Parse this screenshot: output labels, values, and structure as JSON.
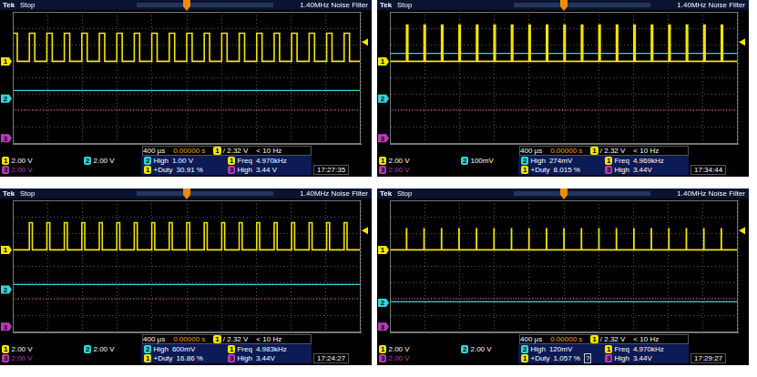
{
  "chart_data": [
    {
      "type": "line",
      "brand": "Tek",
      "title": "Stop",
      "subtitle": "1.40MHz Noise Filter",
      "xlim": [
        -2000,
        2000
      ],
      "xticks": [
        -2000,
        -1600,
        -1200,
        -800,
        -400,
        0,
        400,
        800,
        1200,
        1600,
        2000
      ],
      "ylim": [
        -4,
        4
      ],
      "yticks": [
        -4,
        -3,
        -2,
        -1,
        0,
        1,
        2,
        3,
        4
      ],
      "grid": true,
      "tick_labels": false,
      "trigger": {
        "x": 0,
        "level": 2.16
      },
      "series": [
        {
          "name": "1",
          "color": "#f2e600",
          "line_style": "step",
          "ground": 1,
          "x": [
            -2000,
            -1948,
            -1809,
            -1747,
            -1608,
            -1546,
            -1407,
            -1345,
            -1206,
            -1144,
            -1005,
            -943,
            -804,
            -742,
            -603,
            -541,
            -402,
            -340,
            -201,
            -139,
            0,
            62,
            201,
            263,
            402,
            464,
            603,
            665,
            804,
            866,
            1005,
            1067,
            1206,
            1268,
            1407,
            1469,
            1608,
            1670,
            1809,
            1871,
            2000
          ],
          "values": [
            2.7,
            1,
            2.7,
            1,
            2.7,
            1,
            2.7,
            1,
            2.7,
            1,
            2.7,
            1,
            2.7,
            1,
            2.7,
            1,
            2.7,
            1,
            2.7,
            1,
            2.7,
            1,
            2.7,
            1,
            2.7,
            1,
            2.7,
            1,
            2.7,
            1,
            2.7,
            1,
            2.7,
            1,
            2.7,
            1,
            2.7,
            1,
            2.7,
            1,
            1
          ]
        },
        {
          "name": "2",
          "color": "#35d6d6",
          "line_style": "solid",
          "ground": -1.26,
          "x": [
            -2000,
            2000
          ],
          "values": [
            -0.76,
            -0.76
          ]
        },
        {
          "name": "3",
          "color": "#b83cb8",
          "line_style": "dotted",
          "ground": -3.66,
          "x": [
            -2000,
            2000
          ],
          "values": [
            -1.94,
            -1.94
          ]
        }
      ],
      "status": {
        "timebase": "400 µs",
        "position": "0.00000 s",
        "trigger_source": "1",
        "trigger_level": "/ 2.32 V",
        "trigger_freq": "< 10 Hz",
        "scales": [
          {
            "channel": "1",
            "text": "2.00 V"
          },
          {
            "channel": "2",
            "text": "2.00 V"
          },
          {
            "channel": "3",
            "text": "2.00 V"
          }
        ],
        "measurements": [
          {
            "channel": "2",
            "label": "High",
            "text": "1.00 V"
          },
          {
            "channel": "1",
            "label": "Freq",
            "text": "4.970kHz"
          },
          {
            "channel": "1",
            "label": "+Duty",
            "text": "30.91 %"
          },
          {
            "channel": "3",
            "label": "High",
            "text": "3.44 V"
          }
        ],
        "time": "17:27:35"
      }
    },
    {
      "type": "line",
      "brand": "Tek",
      "title": "Stop",
      "subtitle": "1.40MHz Noise Filter",
      "xlim": [
        -2000,
        2000
      ],
      "xticks": [
        -2000,
        -1600,
        -1200,
        -800,
        -400,
        0,
        400,
        800,
        1200,
        1600,
        2000
      ],
      "ylim": [
        -4,
        4
      ],
      "yticks": [
        -4,
        -3,
        -2,
        -1,
        0,
        1,
        2,
        3,
        4
      ],
      "grid": true,
      "tick_labels": false,
      "trigger": {
        "x": 0,
        "level": 2.16
      },
      "series": [
        {
          "name": "1",
          "color": "#f2e600",
          "line_style": "step",
          "ground": 1,
          "x": [
            -2000,
            -1809,
            -1793,
            -1608,
            -1592,
            -1407,
            -1391,
            -1206,
            -1190,
            -1005,
            -989,
            -804,
            -788,
            -603,
            -587,
            -402,
            -386,
            -201,
            -185,
            0,
            16,
            201,
            217,
            402,
            418,
            603,
            619,
            804,
            820,
            1005,
            1021,
            1206,
            1222,
            1407,
            1423,
            1608,
            1624,
            1809,
            1825,
            2000
          ],
          "values": [
            1,
            3.2,
            1,
            3.2,
            1,
            3.2,
            1,
            3.2,
            1,
            3.2,
            1,
            3.2,
            1,
            3.2,
            1,
            3.2,
            1,
            3.2,
            1,
            3.2,
            1,
            3.2,
            1,
            3.2,
            1,
            3.2,
            1,
            3.2,
            1,
            3.2,
            1,
            3.2,
            1,
            3.2,
            1,
            3.2,
            1,
            3.2,
            1,
            1
          ]
        },
        {
          "name": "2",
          "color": "#35d6d6",
          "line_style": "solid",
          "ground": -1.26,
          "x": [
            -2000,
            2000
          ],
          "values": [
            1.48,
            1.48
          ]
        },
        {
          "name": "3",
          "color": "#b83cb8",
          "line_style": "dotted",
          "ground": -3.66,
          "x": [
            -2000,
            2000
          ],
          "values": [
            -1.94,
            -1.94
          ]
        }
      ],
      "status": {
        "timebase": "400 µs",
        "position": "0.00000 s",
        "trigger_source": "1",
        "trigger_level": "/ 2.32 V",
        "trigger_freq": "< 10 Hz",
        "scales": [
          {
            "channel": "1",
            "text": "2.00 V"
          },
          {
            "channel": "2",
            "text": "100mV"
          },
          {
            "channel": "3",
            "text": "2.00 V"
          }
        ],
        "measurements": [
          {
            "channel": "2",
            "label": "High",
            "text": "274mV"
          },
          {
            "channel": "1",
            "label": "Freq",
            "text": "4.969kHz"
          },
          {
            "channel": "1",
            "label": "+Duty",
            "text": "8.015 %"
          },
          {
            "channel": "3",
            "label": "High",
            "text": "3.44V"
          }
        ],
        "time": "17:34:44"
      }
    },
    {
      "type": "line",
      "brand": "Tek",
      "title": "Stop",
      "subtitle": "1.40MHz Noise Filter",
      "xlim": [
        -2000,
        2000
      ],
      "xticks": [
        -2000,
        -1600,
        -1200,
        -800,
        -400,
        0,
        400,
        800,
        1200,
        1600,
        2000
      ],
      "ylim": [
        -4,
        4
      ],
      "yticks": [
        -4,
        -3,
        -2,
        -1,
        0,
        1,
        2,
        3,
        4
      ],
      "grid": true,
      "tick_labels": false,
      "trigger": {
        "x": 0,
        "level": 2.16
      },
      "series": [
        {
          "name": "1",
          "color": "#f2e600",
          "line_style": "step",
          "ground": 1,
          "x": [
            -2000,
            -1809,
            -1775,
            -1608,
            -1574,
            -1407,
            -1373,
            -1206,
            -1172,
            -1005,
            -971,
            -804,
            -770,
            -603,
            -569,
            -402,
            -368,
            -201,
            -167,
            0,
            34,
            201,
            235,
            402,
            436,
            603,
            637,
            804,
            838,
            1005,
            1039,
            1206,
            1240,
            1407,
            1441,
            1608,
            1642,
            1809,
            1843,
            2000
          ],
          "values": [
            1,
            2.65,
            1,
            2.65,
            1,
            2.65,
            1,
            2.65,
            1,
            2.65,
            1,
            2.65,
            1,
            2.65,
            1,
            2.65,
            1,
            2.65,
            1,
            2.65,
            1,
            2.65,
            1,
            2.65,
            1,
            2.65,
            1,
            2.65,
            1,
            2.65,
            1,
            2.65,
            1,
            2.65,
            1,
            2.65,
            1,
            2.65,
            1,
            1
          ]
        },
        {
          "name": "2",
          "color": "#35d6d6",
          "line_style": "solid",
          "ground": -1.4,
          "x": [
            -2000,
            2000
          ],
          "values": [
            -1.1,
            -1.1
          ]
        },
        {
          "name": "3",
          "color": "#b83cb8",
          "line_style": "dotted",
          "ground": -3.66,
          "x": [
            -2000,
            2000
          ],
          "values": [
            -1.95,
            -1.95
          ]
        }
      ],
      "status": {
        "timebase": "400 µs",
        "position": "0.00000 s",
        "trigger_source": "1",
        "trigger_level": "/ 2.32 V",
        "trigger_freq": "< 10 Hz",
        "scales": [
          {
            "channel": "1",
            "text": "2.00 V"
          },
          {
            "channel": "2",
            "text": "2.00 V"
          },
          {
            "channel": "3",
            "text": "2.00 V"
          }
        ],
        "measurements": [
          {
            "channel": "2",
            "label": "High",
            "text": "600mV"
          },
          {
            "channel": "1",
            "label": "Freq",
            "text": "4.983kHz"
          },
          {
            "channel": "1",
            "label": "+Duty",
            "text": "16.86 %"
          },
          {
            "channel": "3",
            "label": "High",
            "text": "3.44V"
          }
        ],
        "time": "17:24:27"
      }
    },
    {
      "type": "line",
      "brand": "Tek",
      "title": "Stop",
      "subtitle": "1.40MHz Noise Filter",
      "xlim": [
        -2000,
        2000
      ],
      "xticks": [
        -2000,
        -1600,
        -1200,
        -800,
        -400,
        0,
        400,
        800,
        1200,
        1600,
        2000
      ],
      "ylim": [
        -4,
        4
      ],
      "yticks": [
        -4,
        -3,
        -2,
        -1,
        0,
        1,
        2,
        3,
        4
      ],
      "grid": true,
      "tick_labels": false,
      "trigger": {
        "x": 0,
        "level": 2.16
      },
      "series": [
        {
          "name": "1",
          "color": "#f2e600",
          "line_style": "step",
          "ground": 1,
          "x": [
            -2000,
            -1809,
            -1807,
            -1608,
            -1606,
            -1407,
            -1405,
            -1206,
            -1204,
            -1005,
            -1003,
            -804,
            -802,
            -603,
            -601,
            -402,
            -400,
            -201,
            -199,
            0,
            2,
            201,
            203,
            402,
            404,
            603,
            605,
            804,
            806,
            1005,
            1007,
            1206,
            1208,
            1407,
            1409,
            1608,
            1610,
            1809,
            1811,
            2000
          ],
          "values": [
            1,
            2.27,
            1,
            2.27,
            1,
            2.27,
            1,
            2.27,
            1,
            2.27,
            1,
            2.27,
            1,
            2.27,
            1,
            2.27,
            1,
            2.27,
            1,
            2.27,
            1,
            2.27,
            1,
            2.27,
            1,
            2.27,
            1,
            2.27,
            1,
            2.27,
            1,
            2.27,
            1,
            2.27,
            1,
            2.27,
            1,
            2.27,
            1,
            1
          ]
        },
        {
          "name": "2",
          "color": "#35d6d6",
          "line_style": "solid",
          "ground": -2.2,
          "x": [
            -2000,
            2000
          ],
          "values": [
            -2.14,
            -2.14
          ]
        },
        {
          "name": "3",
          "color": "#b83cb8",
          "line_style": "dotted",
          "ground": -3.66,
          "x": [
            -2000,
            2000
          ],
          "values": [
            -1.94,
            -1.94
          ]
        }
      ],
      "status": {
        "timebase": "400 µs",
        "position": "0.00000 s",
        "trigger_source": "1",
        "trigger_level": "/ 2.32 V",
        "trigger_freq": "< 10 Hz",
        "scales": [
          {
            "channel": "1",
            "text": "2.00 V"
          },
          {
            "channel": "2",
            "text": "2.00 V"
          },
          {
            "channel": "3",
            "text": "2.00 V"
          }
        ],
        "measurements": [
          {
            "channel": "2",
            "label": "High",
            "text": "120mV"
          },
          {
            "channel": "1",
            "label": "Freq",
            "text": "4.970kHz"
          },
          {
            "channel": "1",
            "label": "+Duty",
            "text": "1.057 %",
            "flag": "?"
          },
          {
            "channel": "3",
            "label": "High",
            "text": "3.44V"
          }
        ],
        "time": "17:29:27"
      }
    }
  ]
}
